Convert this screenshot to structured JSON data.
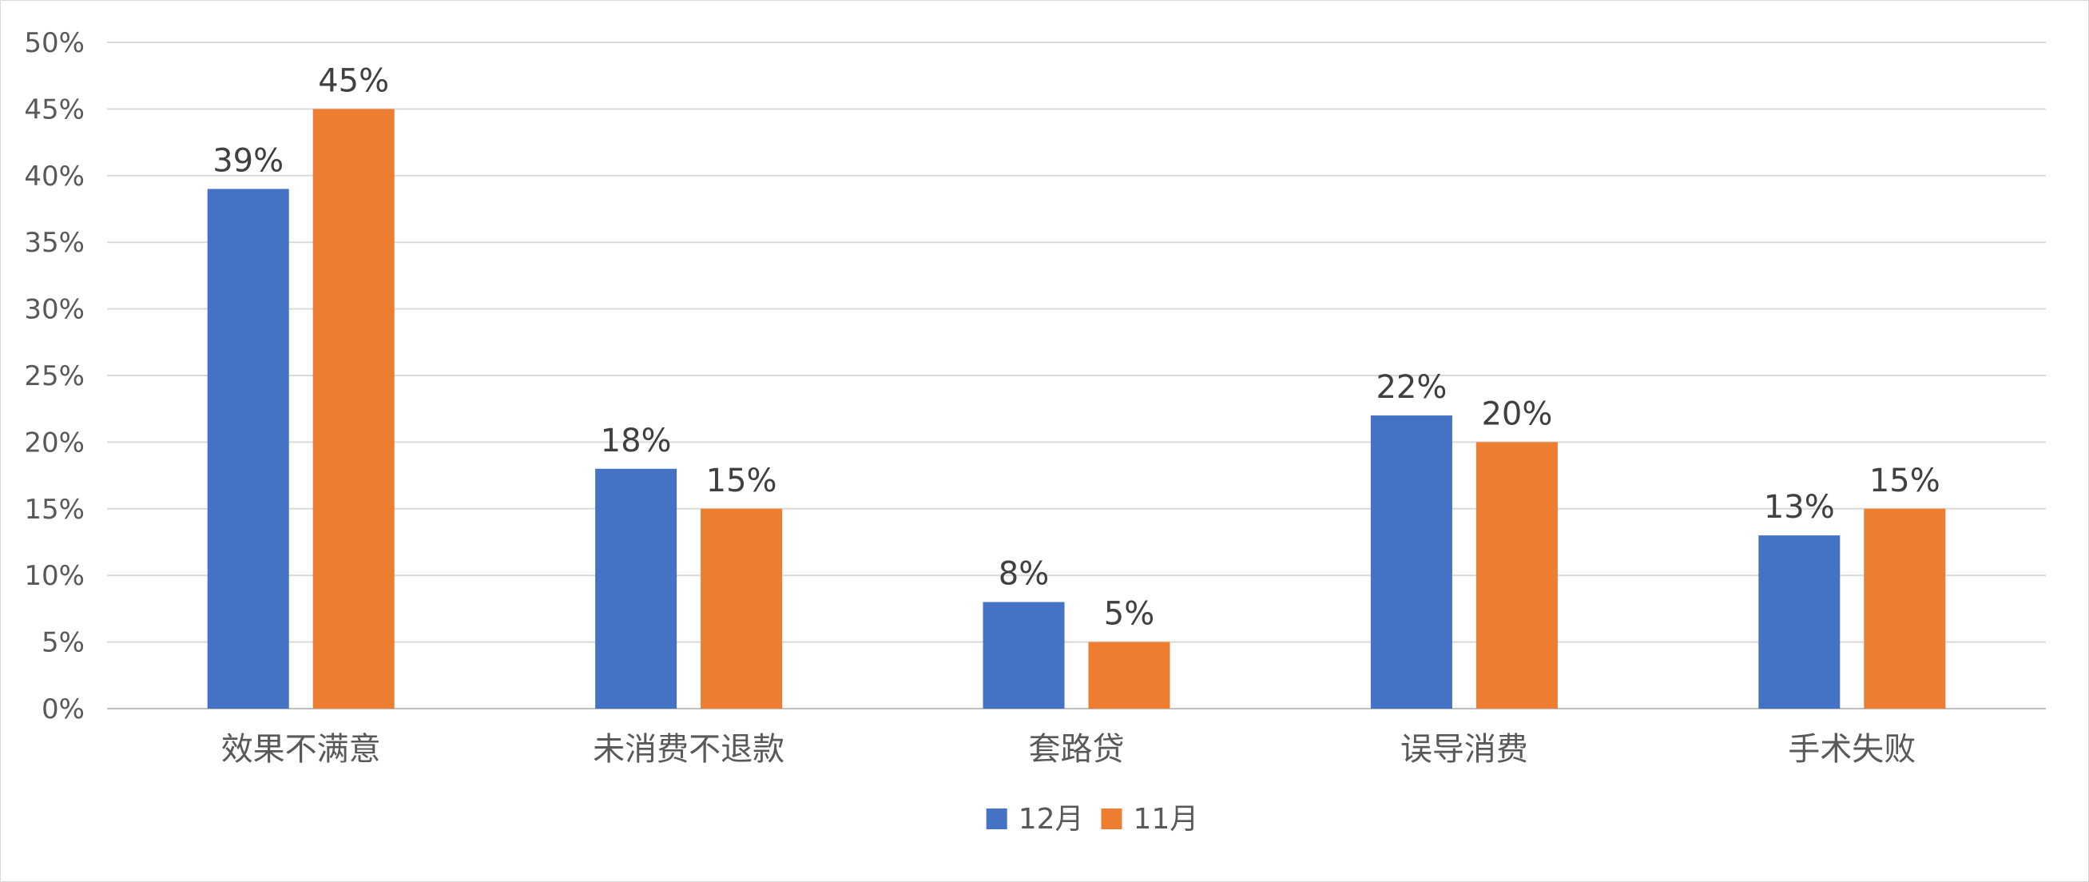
{
  "chart_data": {
    "type": "bar",
    "title": "",
    "xlabel": "",
    "ylabel": "",
    "categories": [
      "效果不满意",
      "未消费不退款",
      "套路贷",
      "误导消费",
      "手术失败"
    ],
    "series": [
      {
        "name": "12月",
        "values": [
          39,
          18,
          8,
          22,
          13
        ],
        "color": "#4472C4"
      },
      {
        "name": "11月",
        "values": [
          45,
          15,
          5,
          20,
          15
        ],
        "color": "#ED7D31"
      }
    ],
    "ylim": [
      0,
      50
    ],
    "ytick_step": 5,
    "y_tick_labels": [
      "0%",
      "5%",
      "10%",
      "15%",
      "20%",
      "25%",
      "30%",
      "35%",
      "40%",
      "45%",
      "50%"
    ],
    "value_format": "percent",
    "grid": true,
    "legend_position": "bottom"
  }
}
